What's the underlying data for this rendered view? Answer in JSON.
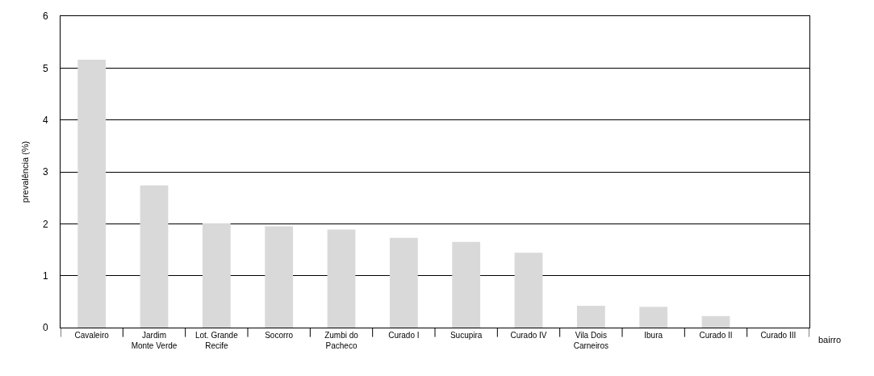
{
  "chart_data": {
    "type": "bar",
    "xlabel": "bairro",
    "ylabel": "prevalência (%)",
    "categories": [
      "Cavaleiro",
      "Jardim Monte Verde",
      "Lot. Grande Recife",
      "Socorro",
      "Zumbi do Pacheco",
      "Curado I",
      "Sucupira",
      "Curado IV",
      "Vila Dois Carneiros",
      "Ibura",
      "Curado II",
      "Curado III"
    ],
    "values": [
      5.16,
      2.74,
      2.01,
      1.95,
      1.89,
      1.73,
      1.65,
      1.44,
      0.42,
      0.4,
      0.22,
      0
    ],
    "color": "#d9d9d9",
    "ylim": [
      0,
      6
    ],
    "yticks": [
      0,
      1,
      2,
      3,
      4,
      5,
      6
    ],
    "grid": "y"
  }
}
